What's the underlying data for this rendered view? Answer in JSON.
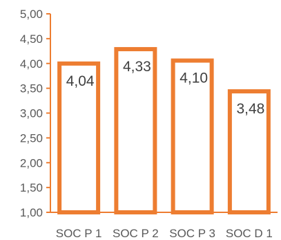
{
  "chart_data": {
    "type": "bar",
    "categories": [
      "SOC P 1",
      "SOC P 2",
      "SOC P 3",
      "SOC D 1"
    ],
    "values": [
      4.04,
      4.33,
      4.1,
      3.48
    ],
    "value_labels": [
      "4,04",
      "4,33",
      "4,10",
      "3,48"
    ],
    "yticks": [
      1.0,
      1.5,
      2.0,
      2.5,
      3.0,
      3.5,
      4.0,
      4.5,
      5.0
    ],
    "ytick_labels": [
      "1,00",
      "1,50",
      "2,00",
      "2,50",
      "3,00",
      "3,50",
      "4,00",
      "4,50",
      "5,00"
    ],
    "ylim": [
      1.0,
      5.0
    ],
    "grid": false,
    "bar_fill": "#ffffff",
    "bar_outline": "#ED7D31",
    "axis_color": "#ED7D31"
  }
}
